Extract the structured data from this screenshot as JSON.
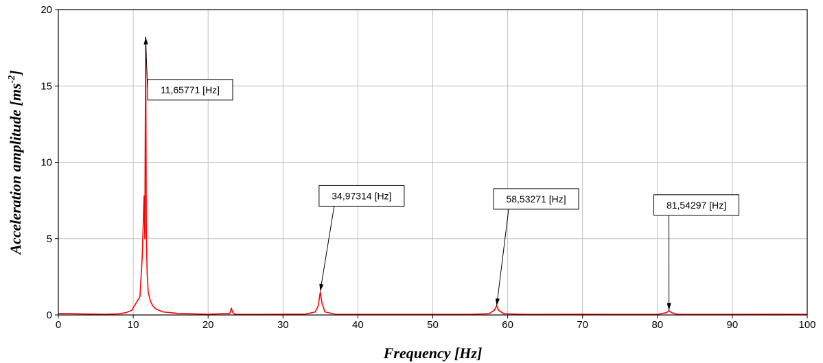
{
  "chart_data": {
    "type": "line",
    "xlabel": "Frequency [Hz]",
    "ylabel_main": "Acceleration amplitude [ms",
    "ylabel_sup": "-2",
    "ylabel_end": "]",
    "xlim": [
      0,
      100
    ],
    "ylim": [
      0,
      20
    ],
    "xticks": [
      0,
      10,
      20,
      30,
      40,
      50,
      60,
      70,
      80,
      90,
      100
    ],
    "yticks": [
      0,
      5,
      10,
      15,
      20
    ],
    "grid": true,
    "series_color": "#ff0000",
    "series": [
      {
        "x": [
          0,
          2,
          4,
          6,
          8,
          9,
          9.8,
          10.4,
          10.9,
          11.2,
          11.45,
          11.55,
          11.65771,
          11.75,
          11.85,
          12.0,
          12.3,
          12.6,
          13.0,
          14.0,
          16,
          20,
          22.9,
          23.1,
          23.3,
          23.6,
          26,
          30,
          33,
          34.3,
          34.7,
          34.97314,
          35.2,
          35.6,
          37,
          40,
          45,
          50,
          55,
          57.5,
          58.2,
          58.53271,
          58.8,
          59.5,
          62,
          65,
          70,
          75,
          80,
          81.2,
          81.54297,
          81.9,
          82.6,
          85,
          90,
          95,
          100
        ],
        "y": [
          0.1,
          0.08,
          0.06,
          0.05,
          0.07,
          0.15,
          0.3,
          0.8,
          1.2,
          3.8,
          7.8,
          5.0,
          18.2,
          5.5,
          2.8,
          1.5,
          0.9,
          0.6,
          0.4,
          0.2,
          0.1,
          0.05,
          0.1,
          0.45,
          0.15,
          0.05,
          0.04,
          0.05,
          0.06,
          0.2,
          0.6,
          1.5,
          0.8,
          0.2,
          0.05,
          0.04,
          0.04,
          0.04,
          0.04,
          0.08,
          0.3,
          0.6,
          0.3,
          0.08,
          0.04,
          0.04,
          0.05,
          0.04,
          0.04,
          0.15,
          0.28,
          0.15,
          0.05,
          0.04,
          0.04,
          0.05,
          0.04
        ]
      }
    ],
    "annotations": [
      {
        "text": "11,65771 [Hz]",
        "x": 11.65771,
        "y": 18.2,
        "box_x": 17.6,
        "box_y": 14.75
      },
      {
        "text": "34,97314 [Hz]",
        "x": 34.97314,
        "y": 1.55,
        "box_x": 40.5,
        "box_y": 7.8
      },
      {
        "text": "58,53271 [Hz]",
        "x": 58.53271,
        "y": 0.6,
        "box_x": 63.8,
        "box_y": 7.6
      },
      {
        "text": "81,54297 [Hz]",
        "x": 81.54297,
        "y": 0.3,
        "box_x": 85.2,
        "box_y": 7.2
      }
    ]
  }
}
